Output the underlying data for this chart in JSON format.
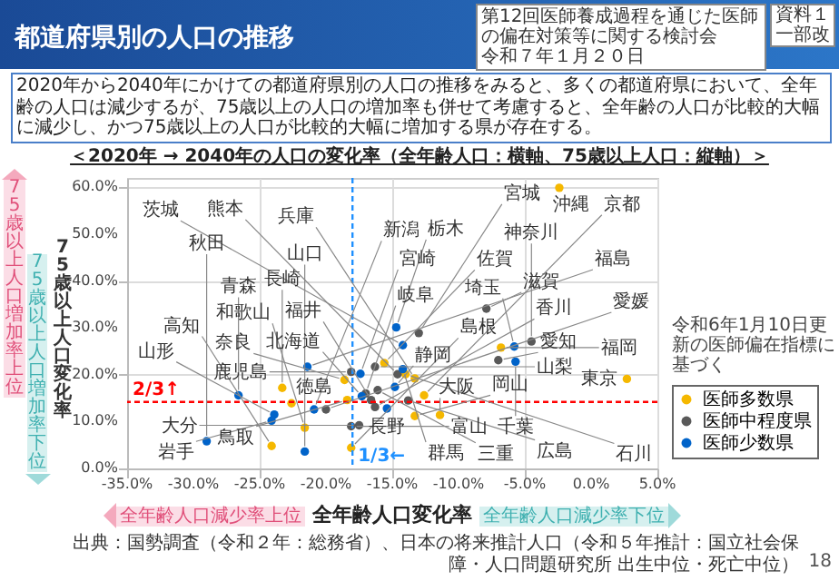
{
  "chart_data": {
    "type": "scatter",
    "title": "都道府県別の人口の推移",
    "subtitle": "＜2020年 → 2040年の人口の変化率（全年齢人口：横軸、75歳以上人口：縦軸）＞",
    "xlabel": "全年齢人口変化率",
    "ylabel": "75歳以上人口変化率",
    "xlim": [
      -35,
      5
    ],
    "ylim": [
      0,
      62
    ],
    "xticks": [
      {
        "value": -35,
        "label": "-35.0%"
      },
      {
        "value": -30,
        "label": "-30.0%"
      },
      {
        "value": -25,
        "label": "-25.0%"
      },
      {
        "value": -20,
        "label": "-20.0%"
      },
      {
        "value": -15,
        "label": "-15.0%"
      },
      {
        "value": -10,
        "label": "-10.0%"
      },
      {
        "value": -5,
        "label": "-5.0%"
      },
      {
        "value": 0,
        "label": "0.0%"
      },
      {
        "value": 5,
        "label": "5.0%"
      }
    ],
    "yticks": [
      {
        "value": 0,
        "label": "0.0%"
      },
      {
        "value": 10,
        "label": "10.0%"
      },
      {
        "value": 20,
        "label": "20.0%"
      },
      {
        "value": 30,
        "label": "30.0%"
      },
      {
        "value": 40,
        "label": "40.0%"
      },
      {
        "value": 50,
        "label": "50.0%"
      },
      {
        "value": 60,
        "label": "60.0%"
      }
    ],
    "grid": true,
    "marker": "circle",
    "legend": "bottom right",
    "ref_lines": [
      {
        "axis": "y",
        "value": 14.2,
        "label": "2/3↑",
        "color": "#ff0000",
        "line_style": "dashed"
      },
      {
        "axis": "x",
        "value": -18.0,
        "label": "1/3←",
        "color": "#1e90ff",
        "line_style": "dashed"
      }
    ],
    "series": [
      {
        "name": "医師多数県",
        "color": "#f5b800",
        "x": [
          -2.4,
          -6.8,
          2.7,
          -15.6,
          -13.3,
          -14.0,
          -12.6,
          -13.3,
          -11.4,
          -18.1,
          -18.4,
          -18.6,
          -22.6,
          -23.3,
          -24.1,
          -21.6
        ],
        "values": [
          59.9,
          25.8,
          19.1,
          22.5,
          19.2,
          20.1,
          15.6,
          11.2,
          11.4,
          4.4,
          14.6,
          18.9,
          13.9,
          17.2,
          4.8,
          8.7
        ]
      },
      {
        "name": "医師中程度県",
        "color": "#595959",
        "x": [
          -7.9,
          -13.0,
          -4.5,
          -7.0,
          -18.1,
          -16.3,
          -14.6,
          -16.1,
          -13.8,
          -16.3,
          -16.6,
          -17.0,
          -17.5,
          -18.1,
          -20.0
        ],
        "values": [
          34.1,
          28.9,
          27.1,
          23.1,
          20.6,
          21.7,
          20.1,
          16.7,
          14.5,
          13.1,
          14.6,
          16.0,
          9.2,
          9.0,
          12.6
        ]
      },
      {
        "name": "医師少数県",
        "color": "#0063c9",
        "x": [
          -14.7,
          -14.2,
          -5.8,
          -5.7,
          -17.4,
          -17.3,
          -14.2,
          -14.8,
          -15.4,
          -20.9,
          -26.6,
          -21.4,
          -29.0,
          -21.6,
          -23.9,
          -24.1
        ],
        "values": [
          30.1,
          26.3,
          26.0,
          22.8,
          20.2,
          15.4,
          21.2,
          17.4,
          12.8,
          12.6,
          15.6,
          21.7,
          5.8,
          3.6,
          11.5,
          10.2
        ]
      }
    ],
    "annotations": [
      "第12回医師養成過程を通じた医師の偏在対策等に関する検討会",
      "令和７年１月２０日",
      "資料１",
      "一部改",
      "2020年から2040年にかけての都道府県別の人口の推移をみると、多くの都道府県において、全年齢の人口は減少するが、75歳以上の人口の増加率も併せて考慮すると、全年齢の人口が比較的大幅に減少し、かつ75歳以上の人口が比較的大幅に増加する県が存在する。",
      "75歳以上人口増加率上位",
      "75歳以上人口増加率下位",
      "全年齢人口減少率上位",
      "全年齢人口減少率下位",
      "令和6年1月10日更新の医師偏在指標に基づく",
      "出典：国勢調査（令和２年：総務省）、日本の将来推計人口（令和５年推計：国立社会保障・人口問題研究所 出生中位・死亡中位）",
      "18",
      {
        "text": "沖縄",
        "x": -2.4,
        "y": 59.9
      },
      {
        "text": "福岡",
        "x": -6.8,
        "y": 25.8
      },
      {
        "text": "東京",
        "x": 2.7,
        "y": 19.1
      },
      {
        "text": "佐賀",
        "x": -15.6,
        "y": 22.5
      },
      {
        "text": "兵庫",
        "x": -13.3,
        "y": 19.2
      },
      {
        "text": "石川",
        "x": -14.0,
        "y": 20.1
      },
      {
        "text": "京都",
        "x": -12.6,
        "y": 15.6
      },
      {
        "text": "岡山",
        "x": -13.3,
        "y": 11.2
      },
      {
        "text": "大阪",
        "x": -11.4,
        "y": 11.4
      },
      {
        "text": "島根",
        "x": -18.1,
        "y": 4.4
      },
      {
        "text": "鳥取",
        "x": -18.4,
        "y": 14.6
      },
      {
        "text": "奈良",
        "x": -18.6,
        "y": 18.9
      },
      {
        "text": "徳島",
        "x": -22.6,
        "y": 13.9
      },
      {
        "text": "長崎",
        "x": -23.3,
        "y": 17.2
      },
      {
        "text": "高知",
        "x": -24.1,
        "y": 4.8
      },
      {
        "text": "和歌山",
        "x": -21.6,
        "y": 8.7
      },
      {
        "text": "滋賀",
        "x": -7.9,
        "y": 34.1
      },
      {
        "text": "宮城",
        "x": -13.0,
        "y": 28.9
      },
      {
        "text": "神奈川",
        "x": -4.5,
        "y": 27.1
      },
      {
        "text": "愛知",
        "x": -7.0,
        "y": 23.1
      },
      {
        "text": "鹿児島",
        "x": -18.1,
        "y": 20.6
      },
      {
        "text": "山梨",
        "x": -16.3,
        "y": 21.7
      },
      {
        "text": "熊本",
        "x": -14.6,
        "y": 20.1
      },
      {
        "text": "三重",
        "x": -16.1,
        "y": 16.7
      },
      {
        "text": "広島",
        "x": -13.8,
        "y": 14.5
      },
      {
        "text": "香川",
        "x": -16.3,
        "y": 13.1
      },
      {
        "text": "福井",
        "x": -16.6,
        "y": 14.6
      },
      {
        "text": "岐阜",
        "x": -17.0,
        "y": 16.0
      },
      {
        "text": "大分",
        "x": -17.5,
        "y": 9.2
      },
      {
        "text": "富山",
        "x": -18.1,
        "y": 9.0
      },
      {
        "text": "愛媛",
        "x": -20.0,
        "y": 12.6
      },
      {
        "text": "栃木",
        "x": -14.7,
        "y": 30.1
      },
      {
        "text": "茨城",
        "x": -14.2,
        "y": 26.3
      },
      {
        "text": "埼玉",
        "x": -5.8,
        "y": 26.0
      },
      {
        "text": "千葉",
        "x": -5.7,
        "y": 22.8
      },
      {
        "text": "宮崎",
        "x": -17.4,
        "y": 20.2
      },
      {
        "text": "北海道",
        "x": -17.3,
        "y": 15.4
      },
      {
        "text": "群馬",
        "x": -14.2,
        "y": 21.2
      },
      {
        "text": "静岡",
        "x": -14.8,
        "y": 17.4
      },
      {
        "text": "長野",
        "x": -15.4,
        "y": 12.8
      },
      {
        "text": "新潟",
        "x": -20.9,
        "y": 12.6
      },
      {
        "text": "青森",
        "x": -26.6,
        "y": 15.6
      },
      {
        "text": "福島",
        "x": -21.4,
        "y": 21.7
      },
      {
        "text": "秋田",
        "x": -29.0,
        "y": 5.8
      },
      {
        "text": "山口",
        "x": -21.6,
        "y": 3.6
      },
      {
        "text": "山形",
        "x": -23.9,
        "y": 11.5
      },
      {
        "text": "岩手",
        "x": -24.1,
        "y": 10.2
      }
    ]
  }
}
